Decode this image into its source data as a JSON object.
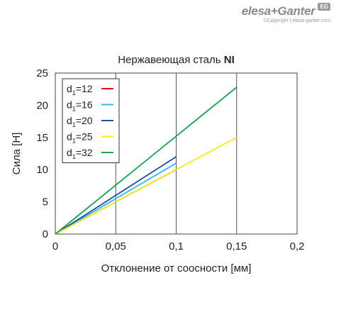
{
  "brand": {
    "name": "elesa+Ganter",
    "badge": "EG",
    "copyright": "©Copyright | elesa-ganter.com"
  },
  "chart_data": {
    "type": "line",
    "title_prefix": "Нержавеющая сталь ",
    "title_bold": "NI",
    "xlabel": "Отклонение от соосности [мм]",
    "ylabel": "Сила [Н]",
    "xlim": [
      0,
      0.2
    ],
    "ylim": [
      0,
      25
    ],
    "x_ticks": [
      {
        "value": 0,
        "label": "0"
      },
      {
        "value": 0.05,
        "label": "0,05"
      },
      {
        "value": 0.1,
        "label": "0,1"
      },
      {
        "value": 0.15,
        "label": "0,15"
      },
      {
        "value": 0.2,
        "label": "0,2"
      }
    ],
    "y_ticks": [
      {
        "value": 0,
        "label": "0"
      },
      {
        "value": 5,
        "label": "5"
      },
      {
        "value": 10,
        "label": "10"
      },
      {
        "value": 15,
        "label": "15"
      },
      {
        "value": 20,
        "label": "20"
      },
      {
        "value": 25,
        "label": "25"
      }
    ],
    "grid": "vertical",
    "legend_position": "top-left",
    "series": [
      {
        "name": "d1=12",
        "base": "d",
        "sub": "1",
        "rest": "=12",
        "color": "#e8001c",
        "x": [
          0,
          0.1
        ],
        "y": [
          0,
          10
        ]
      },
      {
        "name": "d1=16",
        "base": "d",
        "sub": "1",
        "rest": "=16",
        "color": "#33b5f0",
        "x": [
          0,
          0.1
        ],
        "y": [
          0,
          11
        ]
      },
      {
        "name": "d1=20",
        "base": "d",
        "sub": "1",
        "rest": "=20",
        "color": "#1f4ea8",
        "x": [
          0,
          0.1
        ],
        "y": [
          0,
          12
        ]
      },
      {
        "name": "d1=25",
        "base": "d",
        "sub": "1",
        "rest": "=25",
        "color": "#f2ee1e",
        "x": [
          0,
          0.15
        ],
        "y": [
          0,
          15
        ]
      },
      {
        "name": "d1=32",
        "base": "d",
        "sub": "1",
        "rest": "=32",
        "color": "#1a9e52",
        "x": [
          0,
          0.15
        ],
        "y": [
          0,
          22.8
        ]
      }
    ]
  }
}
